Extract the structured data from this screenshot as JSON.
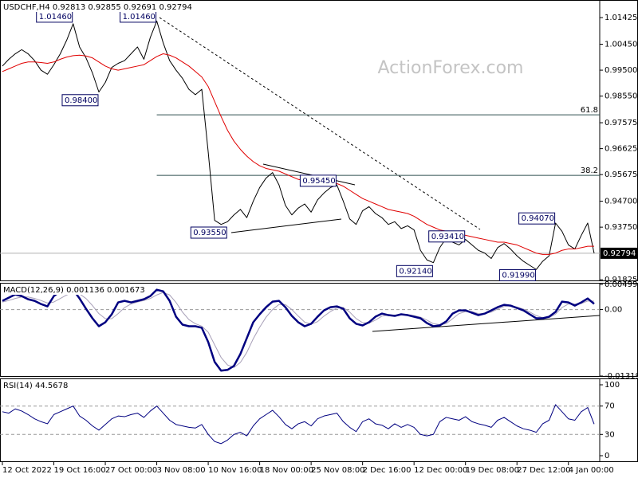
{
  "chart_data": [
    {
      "type": "line",
      "title": "USDCHF,H4 0.92813 0.92855 0.92691 0.92794",
      "watermark": "ActionForex.com",
      "x": [
        0,
        1,
        2,
        3,
        4,
        5,
        6,
        7,
        8,
        9,
        10,
        11,
        12,
        13,
        14,
        15,
        16,
        17,
        18,
        19,
        20,
        21,
        22,
        23,
        24,
        25,
        26,
        27,
        28,
        29,
        30,
        31,
        32,
        33,
        34,
        35,
        36,
        37,
        38,
        39,
        40,
        41,
        42,
        43,
        44,
        45,
        46,
        47,
        48,
        49,
        50,
        51,
        52,
        53,
        54,
        55,
        56,
        57,
        58,
        59,
        60,
        61,
        62,
        63,
        64,
        65,
        66,
        67,
        68,
        69,
        70,
        71,
        72,
        73,
        74,
        75,
        76,
        77,
        78,
        79,
        80,
        81,
        82,
        83,
        84,
        85,
        86,
        87,
        88,
        89,
        90,
        91,
        92
      ],
      "xlim": [
        0,
        92
      ],
      "series": [
        {
          "color": "#000000",
          "line_width": 1,
          "values": [
            0.9965,
            0.999,
            1.001,
            1.0025,
            1.001,
            0.9985,
            0.995,
            0.9935,
            0.997,
            1.001,
            1.006,
            1.012,
            1.0035,
            0.9995,
            0.994,
            0.987,
            0.9905,
            0.996,
            0.9975,
            0.9985,
            1.001,
            1.0035,
            0.999,
            1.007,
            1.013,
            1.005,
            0.9985,
            0.995,
            0.992,
            0.988,
            0.986,
            0.988,
            0.965,
            0.94,
            0.9385,
            0.9395,
            0.942,
            0.944,
            0.941,
            0.947,
            0.952,
            0.9555,
            0.9575,
            0.953,
            0.9455,
            0.942,
            0.9445,
            0.946,
            0.943,
            0.9475,
            0.95,
            0.952,
            0.953,
            0.947,
            0.9405,
            0.9385,
            0.9435,
            0.945,
            0.9425,
            0.941,
            0.9385,
            0.9395,
            0.937,
            0.938,
            0.9365,
            0.929,
            0.9255,
            0.9245,
            0.93,
            0.9335,
            0.932,
            0.931,
            0.933,
            0.931,
            0.929,
            0.928,
            0.926,
            0.93,
            0.9315,
            0.9295,
            0.927,
            0.925,
            0.9235,
            0.922,
            0.925,
            0.927,
            0.939,
            0.936,
            0.931,
            0.9295,
            0.9345,
            0.939,
            0.92794
          ]
        },
        {
          "color": "#e00000",
          "line_width": 1,
          "values": [
            0.9945,
            0.9955,
            0.9965,
            0.9975,
            0.998,
            0.998,
            0.9978,
            0.9975,
            0.998,
            0.999,
            0.9998,
            1.0003,
            1.0005,
            1.0002,
            0.9995,
            0.998,
            0.9965,
            0.9955,
            0.995,
            0.9955,
            0.996,
            0.9965,
            0.997,
            0.9985,
            1.0,
            1.001,
            1.0005,
            0.9995,
            0.998,
            0.9965,
            0.9945,
            0.9925,
            0.989,
            0.9835,
            0.978,
            0.973,
            0.969,
            0.966,
            0.9635,
            0.9615,
            0.96,
            0.959,
            0.9585,
            0.958,
            0.957,
            0.956,
            0.955,
            0.9545,
            0.954,
            0.9535,
            0.9535,
            0.9535,
            0.9535,
            0.9525,
            0.951,
            0.9495,
            0.948,
            0.947,
            0.946,
            0.945,
            0.944,
            0.9435,
            0.943,
            0.9425,
            0.9415,
            0.94,
            0.9385,
            0.9375,
            0.9365,
            0.936,
            0.9355,
            0.935,
            0.9345,
            0.934,
            0.9335,
            0.933,
            0.9325,
            0.932,
            0.932,
            0.9315,
            0.931,
            0.93,
            0.929,
            0.928,
            0.9275,
            0.9275,
            0.928,
            0.929,
            0.9295,
            0.9295,
            0.93,
            0.9305,
            0.9305
          ]
        }
      ],
      "ylim": [
        0.9177,
        1.0207
      ],
      "yticks": [
        1.01425,
        {
          "value": 1.0045,
          "label": "1.00450"
        },
        {
          "value": 0.995,
          "label": "0.99500"
        },
        {
          "value": 0.9855,
          "label": "0.98550"
        },
        0.97575,
        0.96625,
        0.95675,
        {
          "value": 0.947,
          "label": "0.94700"
        },
        {
          "value": 0.9375,
          "label": "0.93750"
        },
        0.91825
      ],
      "annotations": [
        {
          "x": 11,
          "value": 1.0146,
          "label": "1.01460"
        },
        {
          "x": 24,
          "value": 1.0146,
          "label": "1.01460"
        },
        {
          "x": 15,
          "value": 0.984,
          "label": "0.98400"
        },
        {
          "x": 35,
          "value": 0.9355,
          "label": "0.93550"
        },
        {
          "x": 52,
          "value": 0.9545,
          "label": "0.95450"
        },
        {
          "x": 67,
          "value": 0.9214,
          "label": "0.92140"
        },
        {
          "x": 72,
          "value": 0.9341,
          "label": "0.93410"
        },
        {
          "x": 83,
          "value": 0.9199,
          "label": "0.91990"
        },
        {
          "x": 86,
          "value": 0.9407,
          "label": "0.94070"
        }
      ],
      "fib_levels": [
        {
          "value": 0.97865,
          "label": "61.8"
        },
        {
          "value": 0.95647,
          "label": "38.2"
        }
      ],
      "last_price": {
        "value": 0.92794,
        "label": "0.92794"
      }
    },
    {
      "type": "line",
      "title": "MACD(12,26,9) 0.001136 0.001673",
      "x": [
        0,
        1,
        2,
        3,
        4,
        5,
        6,
        7,
        8,
        9,
        10,
        11,
        12,
        13,
        14,
        15,
        16,
        17,
        18,
        19,
        20,
        21,
        22,
        23,
        24,
        25,
        26,
        27,
        28,
        29,
        30,
        31,
        32,
        33,
        34,
        35,
        36,
        37,
        38,
        39,
        40,
        41,
        42,
        43,
        44,
        45,
        46,
        47,
        48,
        49,
        50,
        51,
        52,
        53,
        54,
        55,
        56,
        57,
        58,
        59,
        60,
        61,
        62,
        63,
        64,
        65,
        66,
        67,
        68,
        69,
        70,
        71,
        72,
        73,
        74,
        75,
        76,
        77,
        78,
        79,
        80,
        81,
        82,
        83,
        84,
        85,
        86,
        87,
        88,
        89,
        90,
        91,
        92
      ],
      "xlim": [
        0,
        92
      ],
      "series": [
        {
          "color": "#a8a0b8",
          "line_width": 1,
          "values": [
            0.0015,
            0.0018,
            0.0022,
            0.0025,
            0.0025,
            0.0022,
            0.0018,
            0.0013,
            0.0015,
            0.0022,
            0.0029,
            0.0034,
            0.0031,
            0.0022,
            0.0008,
            -0.0008,
            -0.0018,
            -0.0018,
            -0.0008,
            0.0004,
            0.0011,
            0.0015,
            0.0018,
            0.0022,
            0.0029,
            0.0034,
            0.0029,
            0.0014,
            -0.0005,
            -0.002,
            -0.0028,
            -0.0033,
            -0.0045,
            -0.007,
            -0.0095,
            -0.011,
            -0.0115,
            -0.0105,
            -0.0085,
            -0.0058,
            -0.0035,
            -0.0015,
            0.0,
            0.001,
            0.001,
            0.0,
            -0.0013,
            -0.0025,
            -0.0029,
            -0.0024,
            -0.0013,
            -0.0004,
            0.0003,
            0.0004,
            -0.0005,
            -0.0018,
            -0.0026,
            -0.0027,
            -0.0021,
            -0.0013,
            -0.0011,
            -0.0011,
            -0.001,
            -0.001,
            -0.0012,
            -0.0015,
            -0.0021,
            -0.0028,
            -0.003,
            -0.0028,
            -0.0018,
            -0.0008,
            -0.0004,
            -0.0004,
            -0.0008,
            -0.0008,
            -0.0005,
            0.0001,
            0.0006,
            0.0008,
            0.0005,
            0.0001,
            -0.0005,
            -0.0012,
            -0.0016,
            -0.0016,
            -0.0009,
            0.0004,
            0.0011,
            0.0011,
            0.0012,
            0.0017,
            0.001673
          ]
        },
        {
          "color": "#000080",
          "line_width": 2.5,
          "values": [
            0.00173,
            0.00236,
            0.00299,
            0.00268,
            0.00205,
            0.00173,
            0.0011,
            0.00063,
            0.00268,
            0.00362,
            0.00378,
            0.00394,
            0.0022,
            0.00016,
            -0.00173,
            -0.00331,
            -0.00252,
            -0.00094,
            0.00142,
            0.00173,
            0.00142,
            0.00173,
            0.00205,
            0.00268,
            0.00394,
            0.00362,
            0.00173,
            -0.00142,
            -0.00299,
            -0.00331,
            -0.00331,
            -0.00362,
            -0.00646,
            -0.01039,
            -0.01213,
            -0.01197,
            -0.01118,
            -0.00882,
            -0.00567,
            -0.00252,
            -0.00094,
            0.00047,
            0.00157,
            0.00173,
            0.00047,
            -0.00126,
            -0.00252,
            -0.00331,
            -0.00283,
            -0.00142,
            -0.00016,
            0.00047,
            0.00063,
            0.00016,
            -0.00173,
            -0.00283,
            -0.00315,
            -0.00252,
            -0.00142,
            -0.00079,
            -0.0011,
            -0.00126,
            -0.00094,
            -0.0011,
            -0.00142,
            -0.00173,
            -0.00268,
            -0.00331,
            -0.00315,
            -0.00236,
            -0.00079,
            -0.00016,
            -0.00016,
            -0.00063,
            -0.0011,
            -0.00079,
            -0.00016,
            0.00047,
            0.00094,
            0.00079,
            0.00031,
            -0.00016,
            -0.00094,
            -0.00173,
            -0.00173,
            -0.00142,
            -0.00047,
            0.00157,
            0.00142,
            0.00079,
            0.00142,
            0.0022,
            0.001136
          ]
        }
      ],
      "ylim": [
        -0.013193,
        0.004993
      ],
      "yticks": [
        0.004993,
        {
          "value": 0,
          "label": "0.00"
        },
        -0.013193
      ],
      "levels": [
        0
      ]
    },
    {
      "type": "line",
      "title": "RSI(14) 44.5678",
      "x": [
        0,
        1,
        2,
        3,
        4,
        5,
        6,
        7,
        8,
        9,
        10,
        11,
        12,
        13,
        14,
        15,
        16,
        17,
        18,
        19,
        20,
        21,
        22,
        23,
        24,
        25,
        26,
        27,
        28,
        29,
        30,
        31,
        32,
        33,
        34,
        35,
        36,
        37,
        38,
        39,
        40,
        41,
        42,
        43,
        44,
        45,
        46,
        47,
        48,
        49,
        50,
        51,
        52,
        53,
        54,
        55,
        56,
        57,
        58,
        59,
        60,
        61,
        62,
        63,
        64,
        65,
        66,
        67,
        68,
        69,
        70,
        71,
        72,
        73,
        74,
        75,
        76,
        77,
        78,
        79,
        80,
        81,
        82,
        83,
        84,
        85,
        86,
        87,
        88,
        89,
        90,
        91,
        92
      ],
      "xlim": [
        0,
        92
      ],
      "series": [
        {
          "color": "#000080",
          "line_width": 1,
          "values": [
            62,
            60,
            66,
            63,
            58,
            52,
            48,
            45,
            58,
            62,
            66,
            70,
            56,
            50,
            42,
            36,
            44,
            52,
            56,
            55,
            58,
            60,
            54,
            63,
            70,
            60,
            50,
            44,
            42,
            40,
            39,
            44,
            30,
            20,
            17,
            22,
            30,
            33,
            28,
            42,
            52,
            58,
            64,
            55,
            44,
            38,
            45,
            48,
            42,
            52,
            56,
            58,
            60,
            48,
            40,
            34,
            48,
            52,
            45,
            43,
            38,
            45,
            40,
            44,
            40,
            30,
            28,
            30,
            48,
            54,
            52,
            50,
            55,
            48,
            45,
            43,
            40,
            50,
            54,
            48,
            42,
            38,
            36,
            33,
            45,
            50,
            72,
            62,
            52,
            50,
            62,
            68,
            44.5678
          ]
        }
      ],
      "ylim": [
        0,
        100
      ],
      "yticks": [
        0,
        30,
        70,
        100
      ],
      "levels": [
        30,
        70
      ],
      "xticks": [
        {
          "value": 0,
          "label": "12 Oct 2022"
        },
        {
          "value": 8,
          "label": "19 Oct 16:00"
        },
        {
          "value": 16,
          "label": "27 Oct 00:00"
        },
        {
          "value": 24,
          "label": "3 Nov 08:00"
        },
        {
          "value": 32,
          "label": "10 Nov 16:00"
        },
        {
          "value": 40,
          "label": "18 Nov 00:00"
        },
        {
          "value": 48,
          "label": "25 Nov 08:00"
        },
        {
          "value": 56,
          "label": "2 Dec 16:00"
        },
        {
          "value": 64,
          "label": "12 Dec 00:00"
        },
        {
          "value": 72,
          "label": "19 Dec 08:00"
        },
        {
          "value": 80,
          "label": "27 Dec 12:00"
        },
        {
          "value": 88,
          "label": "4 Jan 00:00"
        }
      ]
    }
  ]
}
